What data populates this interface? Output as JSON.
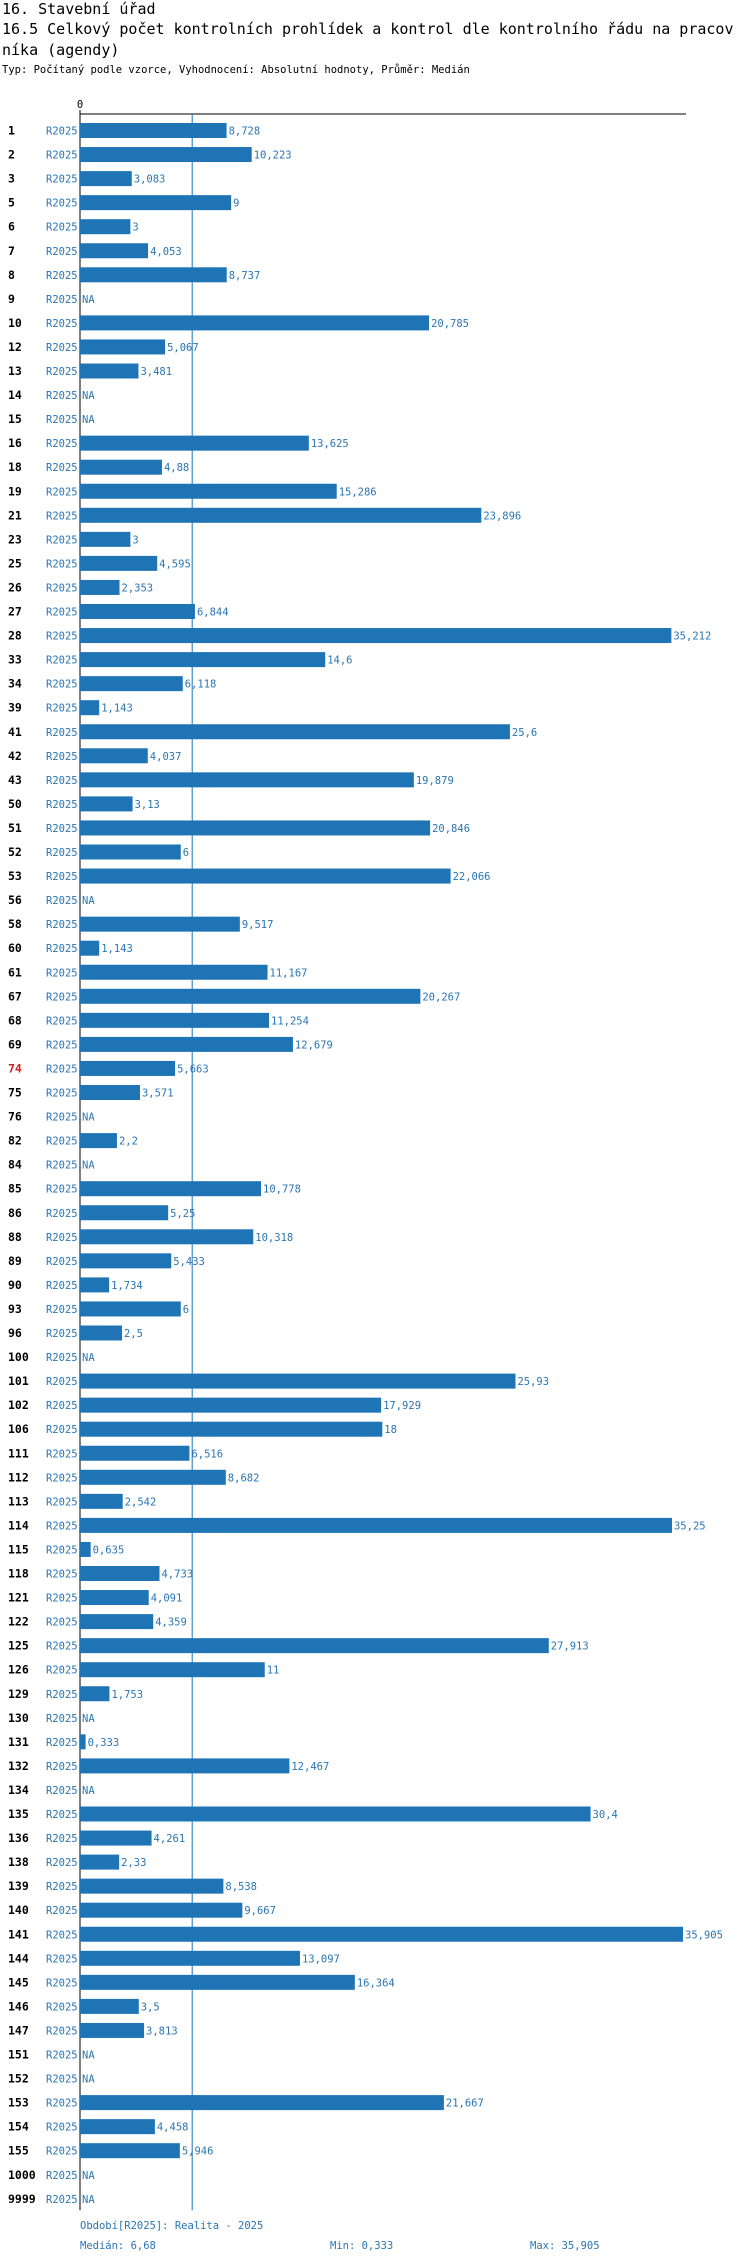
{
  "title": {
    "line1": "16. Stavební úřad",
    "line2": "16.5 Celkový počet kontrolních prohlídek a kontrol dle kontrolního řádu na pracov",
    "line3": "níka (agendy)"
  },
  "subtitle": "Typ: Počítaný podle vzorce, Vyhodnocení: Absolutní hodnoty, Průměr: Medián",
  "chart_data": {
    "type": "bar",
    "orientation": "horizontal",
    "series_name": "R2025",
    "axis_zero_label": "0",
    "x_range": [
      0,
      35.905
    ],
    "median": 6.68,
    "highlight_category": "74",
    "bar_color": "#1f74b5",
    "highlight_color": "#d42020",
    "rows": [
      {
        "id": "1",
        "value": 8.728,
        "label": "8,728"
      },
      {
        "id": "2",
        "value": 10.223,
        "label": "10,223"
      },
      {
        "id": "3",
        "value": 3.083,
        "label": "3,083"
      },
      {
        "id": "5",
        "value": 9,
        "label": "9"
      },
      {
        "id": "6",
        "value": 3,
        "label": "3"
      },
      {
        "id": "7",
        "value": 4.053,
        "label": "4,053"
      },
      {
        "id": "8",
        "value": 8.737,
        "label": "8,737"
      },
      {
        "id": "9",
        "value": null,
        "label": "NA"
      },
      {
        "id": "10",
        "value": 20.785,
        "label": "20,785"
      },
      {
        "id": "12",
        "value": 5.067,
        "label": "5,067"
      },
      {
        "id": "13",
        "value": 3.481,
        "label": "3,481"
      },
      {
        "id": "14",
        "value": null,
        "label": "NA"
      },
      {
        "id": "15",
        "value": null,
        "label": "NA"
      },
      {
        "id": "16",
        "value": 13.625,
        "label": "13,625"
      },
      {
        "id": "18",
        "value": 4.88,
        "label": "4,88"
      },
      {
        "id": "19",
        "value": 15.286,
        "label": "15,286"
      },
      {
        "id": "21",
        "value": 23.896,
        "label": "23,896"
      },
      {
        "id": "23",
        "value": 3,
        "label": "3"
      },
      {
        "id": "25",
        "value": 4.595,
        "label": "4,595"
      },
      {
        "id": "26",
        "value": 2.353,
        "label": "2,353"
      },
      {
        "id": "27",
        "value": 6.844,
        "label": "6,844"
      },
      {
        "id": "28",
        "value": 35.212,
        "label": "35,212"
      },
      {
        "id": "33",
        "value": 14.6,
        "label": "14,6"
      },
      {
        "id": "34",
        "value": 6.118,
        "label": "6,118"
      },
      {
        "id": "39",
        "value": 1.143,
        "label": "1,143"
      },
      {
        "id": "41",
        "value": 25.6,
        "label": "25,6"
      },
      {
        "id": "42",
        "value": 4.037,
        "label": "4,037"
      },
      {
        "id": "43",
        "value": 19.879,
        "label": "19,879"
      },
      {
        "id": "50",
        "value": 3.13,
        "label": "3,13"
      },
      {
        "id": "51",
        "value": 20.846,
        "label": "20,846"
      },
      {
        "id": "52",
        "value": 6,
        "label": "6"
      },
      {
        "id": "53",
        "value": 22.066,
        "label": "22,066"
      },
      {
        "id": "56",
        "value": null,
        "label": "NA"
      },
      {
        "id": "58",
        "value": 9.517,
        "label": "9,517"
      },
      {
        "id": "60",
        "value": 1.143,
        "label": "1,143"
      },
      {
        "id": "61",
        "value": 11.167,
        "label": "11,167"
      },
      {
        "id": "67",
        "value": 20.267,
        "label": "20,267"
      },
      {
        "id": "68",
        "value": 11.254,
        "label": "11,254"
      },
      {
        "id": "69",
        "value": 12.679,
        "label": "12,679"
      },
      {
        "id": "74",
        "value": 5.663,
        "label": "5,663"
      },
      {
        "id": "75",
        "value": 3.571,
        "label": "3,571"
      },
      {
        "id": "76",
        "value": null,
        "label": "NA"
      },
      {
        "id": "82",
        "value": 2.2,
        "label": "2,2"
      },
      {
        "id": "84",
        "value": null,
        "label": "NA"
      },
      {
        "id": "85",
        "value": 10.778,
        "label": "10,778"
      },
      {
        "id": "86",
        "value": 5.25,
        "label": "5,25"
      },
      {
        "id": "88",
        "value": 10.318,
        "label": "10,318"
      },
      {
        "id": "89",
        "value": 5.433,
        "label": "5,433"
      },
      {
        "id": "90",
        "value": 1.734,
        "label": "1,734"
      },
      {
        "id": "93",
        "value": 6,
        "label": "6"
      },
      {
        "id": "96",
        "value": 2.5,
        "label": "2,5"
      },
      {
        "id": "100",
        "value": null,
        "label": "NA"
      },
      {
        "id": "101",
        "value": 25.93,
        "label": "25,93"
      },
      {
        "id": "102",
        "value": 17.929,
        "label": "17,929"
      },
      {
        "id": "106",
        "value": 18,
        "label": "18"
      },
      {
        "id": "111",
        "value": 6.516,
        "label": "6,516"
      },
      {
        "id": "112",
        "value": 8.682,
        "label": "8,682"
      },
      {
        "id": "113",
        "value": 2.542,
        "label": "2,542"
      },
      {
        "id": "114",
        "value": 35.25,
        "label": "35,25"
      },
      {
        "id": "115",
        "value": 0.635,
        "label": "0,635"
      },
      {
        "id": "118",
        "value": 4.733,
        "label": "4,733"
      },
      {
        "id": "121",
        "value": 4.091,
        "label": "4,091"
      },
      {
        "id": "122",
        "value": 4.359,
        "label": "4,359"
      },
      {
        "id": "125",
        "value": 27.913,
        "label": "27,913"
      },
      {
        "id": "126",
        "value": 11,
        "label": "11"
      },
      {
        "id": "129",
        "value": 1.753,
        "label": "1,753"
      },
      {
        "id": "130",
        "value": null,
        "label": "NA"
      },
      {
        "id": "131",
        "value": 0.333,
        "label": "0,333"
      },
      {
        "id": "132",
        "value": 12.467,
        "label": "12,467"
      },
      {
        "id": "134",
        "value": null,
        "label": "NA"
      },
      {
        "id": "135",
        "value": 30.4,
        "label": "30,4"
      },
      {
        "id": "136",
        "value": 4.261,
        "label": "4,261"
      },
      {
        "id": "138",
        "value": 2.33,
        "label": "2,33"
      },
      {
        "id": "139",
        "value": 8.538,
        "label": "8,538"
      },
      {
        "id": "140",
        "value": 9.667,
        "label": "9,667"
      },
      {
        "id": "141",
        "value": 35.905,
        "label": "35,905"
      },
      {
        "id": "144",
        "value": 13.097,
        "label": "13,097"
      },
      {
        "id": "145",
        "value": 16.364,
        "label": "16,364"
      },
      {
        "id": "146",
        "value": 3.5,
        "label": "3,5"
      },
      {
        "id": "147",
        "value": 3.813,
        "label": "3,813"
      },
      {
        "id": "151",
        "value": null,
        "label": "NA"
      },
      {
        "id": "152",
        "value": null,
        "label": "NA"
      },
      {
        "id": "153",
        "value": 21.667,
        "label": "21,667"
      },
      {
        "id": "154",
        "value": 4.458,
        "label": "4,458"
      },
      {
        "id": "155",
        "value": 5.946,
        "label": "5,946"
      },
      {
        "id": "1000",
        "value": null,
        "label": "NA"
      },
      {
        "id": "9999",
        "value": null,
        "label": "NA"
      }
    ]
  },
  "footer": {
    "period": "Období[R2025]: Realita - 2025",
    "median": "Medián: 6,68",
    "min": "Min: 0,333",
    "max": "Max: 35,905"
  }
}
